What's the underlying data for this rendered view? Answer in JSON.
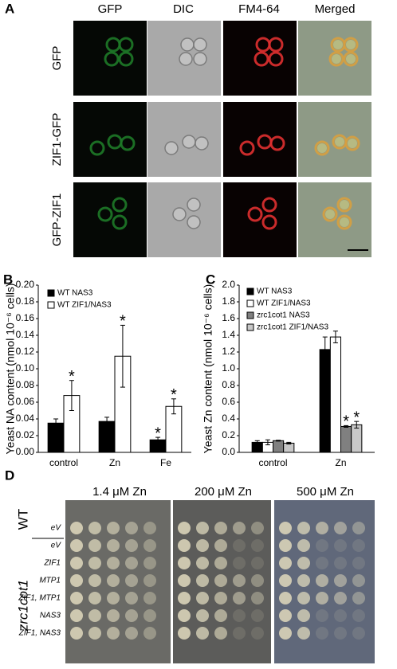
{
  "panel_a": {
    "letter": "A",
    "columns": [
      "GFP",
      "DIC",
      "FM4-64",
      "Merged"
    ],
    "rows": [
      "GFP",
      "ZIF1-GFP",
      "GFP-ZIF1"
    ]
  },
  "chart_data": [
    {
      "type": "bar",
      "panel": "B",
      "ylabel": "Yeast NA content (nmol 10⁻⁶ cells)",
      "categories": [
        "control",
        "Zn",
        "Fe"
      ],
      "series": [
        {
          "name": "WT NAS3",
          "color": "#000000",
          "values": [
            0.035,
            0.037,
            0.015
          ],
          "errors": [
            0.005,
            0.005,
            0.003
          ]
        },
        {
          "name": "WT ZIF1/NAS3",
          "color": "#ffffff",
          "values": [
            0.068,
            0.115,
            0.055
          ],
          "errors": [
            0.018,
            0.037,
            0.009
          ]
        }
      ],
      "annotations": [
        {
          "text": "*",
          "series": "WT ZIF1/NAS3",
          "category": "control"
        },
        {
          "text": "*",
          "series": "WT ZIF1/NAS3",
          "category": "Zn"
        },
        {
          "text": "*",
          "series": "WT NAS3",
          "category": "Fe"
        },
        {
          "text": "*",
          "series": "WT ZIF1/NAS3",
          "category": "Fe"
        }
      ],
      "ylim": [
        0,
        0.2
      ],
      "yticks": [
        {
          "value": 0,
          "label": "0.00"
        },
        0.02,
        0.04,
        0.06,
        0.08,
        {
          "value": 0.1,
          "label": "0.10"
        },
        0.12,
        0.14,
        0.16,
        0.18,
        {
          "value": 0.2,
          "label": "0.20"
        }
      ],
      "legend": "upper left"
    },
    {
      "type": "bar",
      "panel": "C",
      "ylabel": "Yeast Zn content (nmol 10⁻⁶ cells)",
      "categories": [
        "control",
        "Zn"
      ],
      "series": [
        {
          "name": "WT NAS3",
          "color": "#000000",
          "values": [
            0.12,
            1.23
          ],
          "errors": [
            0.02,
            0.15
          ]
        },
        {
          "name": "WT ZIF1/NAS3",
          "color": "#ffffff",
          "values": [
            0.12,
            1.38
          ],
          "errors": [
            0.03,
            0.07
          ]
        },
        {
          "name": "zrc1cot1 NAS3",
          "color": "#808080",
          "values": [
            0.14,
            0.31
          ],
          "errors": [
            0.005,
            0.01
          ]
        },
        {
          "name": "zrc1cot1 ZIF1/NAS3",
          "color": "#c8c8c8",
          "values": [
            0.11,
            0.33
          ],
          "errors": [
            0.01,
            0.04
          ]
        }
      ],
      "annotations": [
        {
          "text": "*",
          "series": "zrc1cot1 NAS3",
          "category": "Zn"
        },
        {
          "text": "*",
          "series": "zrc1cot1 ZIF1/NAS3",
          "category": "Zn"
        }
      ],
      "ylim": [
        0,
        2.0
      ],
      "yticks": [
        {
          "value": 0,
          "label": "0.0"
        },
        0.2,
        0.4,
        0.6,
        0.8,
        {
          "value": 1,
          "label": "1.0"
        },
        1.2,
        1.4,
        1.6,
        1.8,
        {
          "value": 2,
          "label": "2.0"
        }
      ],
      "legend": "upper left"
    }
  ],
  "panel_d": {
    "letter": "D",
    "columns": [
      "1.4 μM Zn",
      "200 μM Zn",
      "500 μM Zn"
    ],
    "groups": [
      "WT",
      "zrc1cot1"
    ],
    "rows": [
      "eV",
      "eV",
      "ZIF1",
      "MTP1",
      "ZIF1, MTP1",
      "NAS3",
      "ZIF1, NAS3"
    ]
  }
}
